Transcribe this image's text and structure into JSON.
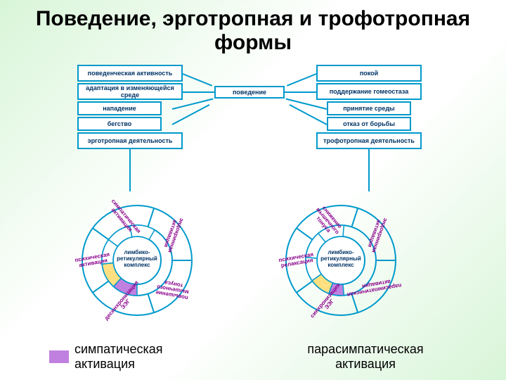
{
  "title": "Поведение, эрготропная и трофотропная формы",
  "box_border": "#0099cc",
  "box_text_color": "#003366",
  "left_stack": [
    "поведенческая активность",
    "адаптация в изменяющейся среде",
    "нападение",
    "бегство",
    "эрготропная деятельность"
  ],
  "right_stack": [
    "покой",
    "поддержание гомеостаза",
    "принятие среды",
    "отказ от борьбы",
    "трофотропная деятельность"
  ],
  "center_label": "поведение",
  "wheel_left": {
    "center": "лимбико-\nретикулярный\nкомплекс",
    "segments": [
      {
        "label": "десинхронизация\nЭЭГ",
        "rot": -50
      },
      {
        "label": "психическая\nактивация",
        "rot": -10
      },
      {
        "label": "симпатическая\nактивация",
        "rot": 50
      },
      {
        "label": "эндокринная\nактивация",
        "rot": 110
      },
      {
        "label": "повышение\nмышечного\nтонуса",
        "rot": 190
      }
    ],
    "slices": [
      {
        "start": 180,
        "end": 222,
        "fill": "#c080e0"
      },
      {
        "start": 222,
        "end": 264,
        "fill": "#ffe080"
      },
      {
        "start": 264,
        "end": 306,
        "fill": "#ffffff"
      },
      {
        "start": 306,
        "end": 348,
        "fill": "#ffffff"
      },
      {
        "start": 348,
        "end": 30,
        "fill": "#ffffff"
      }
    ]
  },
  "wheel_right": {
    "center": "лимбико-\nретикулярный\nкомплекс",
    "segments": [
      {
        "label": "синхронизация\nЭЭГ",
        "rot": -50
      },
      {
        "label": "психическая\nрелаксация",
        "rot": -10
      },
      {
        "label": "снижение\nмышечного\nтонуса",
        "rot": 50
      },
      {
        "label": "эндокринная\nактивация",
        "rot": 110
      },
      {
        "label": "парасимпатическая\nактивация",
        "rot": 170
      }
    ],
    "slices": [
      {
        "start": 175,
        "end": 200,
        "fill": "#c080e0"
      },
      {
        "start": 200,
        "end": 235,
        "fill": "#ffe080"
      },
      {
        "start": 235,
        "end": 275,
        "fill": "#ffffff"
      },
      {
        "start": 275,
        "end": 320,
        "fill": "#ffffff"
      },
      {
        "start": 320,
        "end": 5,
        "fill": "#ffffff"
      }
    ]
  },
  "legend_left": "симпатическая активация",
  "legend_right": "парасимпатическая активация",
  "colors": {
    "purple": "#c080e0",
    "yellow": "#ffe080",
    "ring": "#0099cc"
  }
}
